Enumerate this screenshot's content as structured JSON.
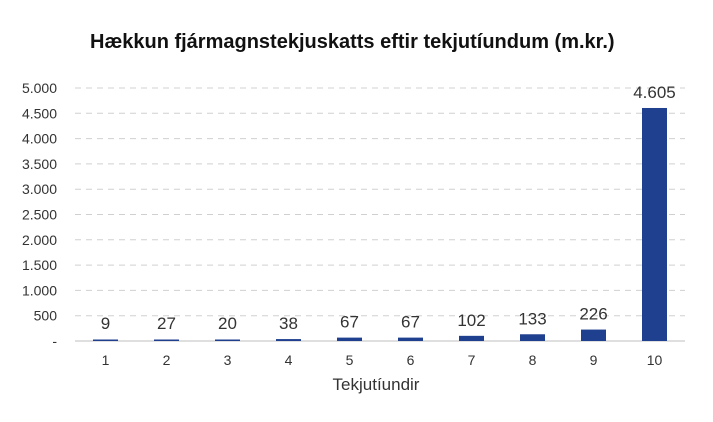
{
  "chart_data": {
    "type": "bar",
    "title": "Hækkun fjármagnstekjuskatts eftir tekjutíundum (m.kr.)",
    "xlabel": "Tekjutíundir",
    "ylabel": "",
    "categories": [
      "1",
      "2",
      "3",
      "4",
      "5",
      "6",
      "7",
      "8",
      "9",
      "10"
    ],
    "values": [
      9,
      27,
      20,
      38,
      67,
      67,
      102,
      133,
      226,
      4605
    ],
    "data_labels": [
      "9",
      "27",
      "20",
      "38",
      "67",
      "67",
      "102",
      "133",
      "226",
      "4.605"
    ],
    "ylim": [
      0,
      5000
    ],
    "yticks": [
      0,
      500,
      1000,
      1500,
      2000,
      2500,
      3000,
      3500,
      4000,
      4500,
      5000
    ],
    "ytick_labels": [
      "-",
      "500",
      "1.000",
      "1.500",
      "2.000",
      "2.500",
      "3.000",
      "3.500",
      "4.000",
      "4.500",
      "5.000"
    ],
    "grid": true,
    "legend": "none",
    "colors": {
      "bar": "#1f3f8f",
      "grid": "#d0d0d0",
      "axis": "#bfbfbf"
    }
  }
}
